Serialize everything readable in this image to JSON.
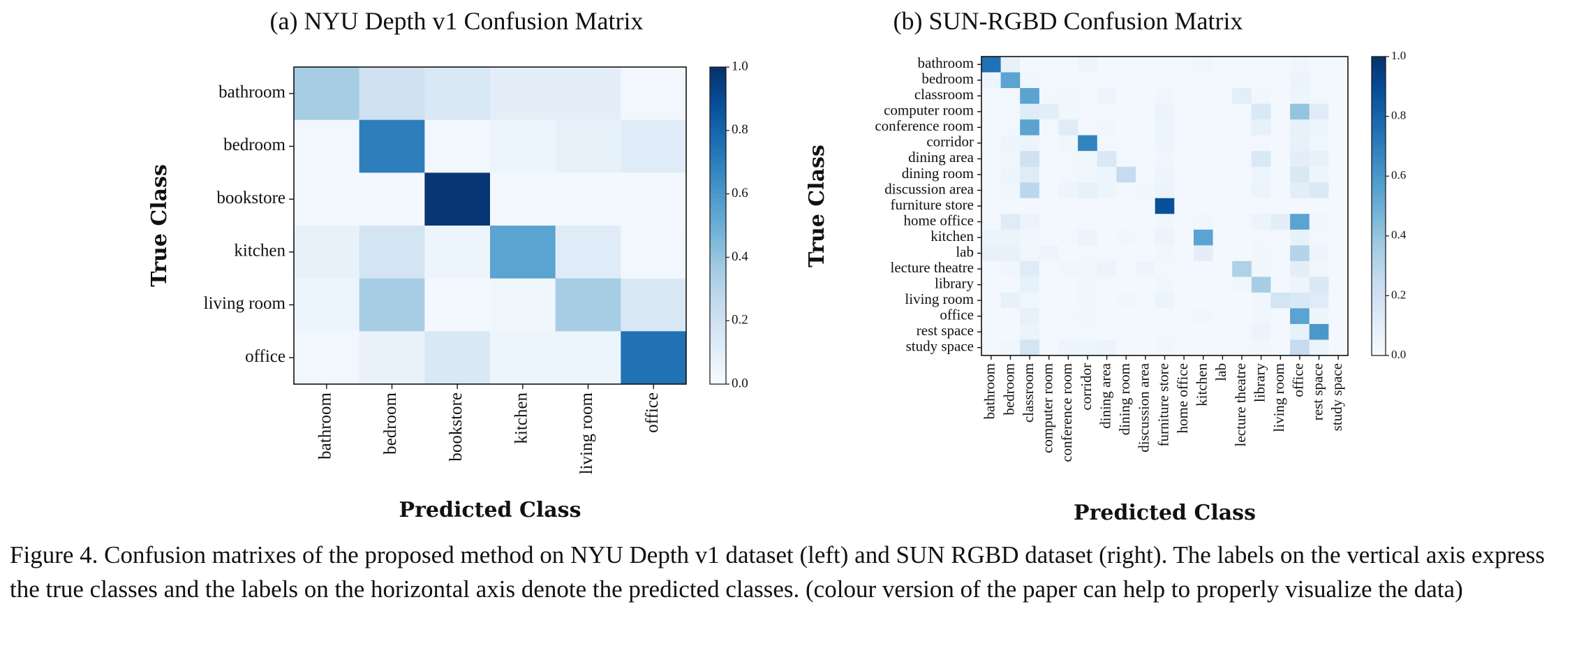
{
  "figure": {
    "caption": "Figure 4. Confusion matrixes of the proposed method on NYU Depth v1 dataset (left) and SUN RGBD dataset (right). The labels on the vertical axis express the true classes and the labels on the horizontal axis denote the predicted classes. (colour version of the paper can help to properly visualize the data)"
  },
  "colormap": {
    "name": "Blues",
    "stops": [
      "#f7fbff",
      "#deebf7",
      "#c6dbef",
      "#9ecae1",
      "#6baed6",
      "#4292c6",
      "#2171b5",
      "#08519c",
      "#08306b"
    ]
  },
  "chart_data": [
    {
      "type": "heatmap",
      "title": "(a) NYU Depth v1 Confusion Matrix",
      "xlabel": "Predicted Class",
      "ylabel": "True Class",
      "x": [
        "bathroom",
        "bedroom",
        "bookstore",
        "kitchen",
        "living room",
        "office"
      ],
      "y": [
        "bathroom",
        "bedroom",
        "bookstore",
        "kitchen",
        "living room",
        "office"
      ],
      "values": [
        [
          0.35,
          0.2,
          0.15,
          0.1,
          0.1,
          0.03
        ],
        [
          0.03,
          0.7,
          0.03,
          0.05,
          0.08,
          0.12
        ],
        [
          0.02,
          0.02,
          0.98,
          0.02,
          0.02,
          0.02
        ],
        [
          0.08,
          0.18,
          0.05,
          0.55,
          0.12,
          0.03
        ],
        [
          0.05,
          0.35,
          0.02,
          0.04,
          0.35,
          0.15
        ],
        [
          0.03,
          0.07,
          0.15,
          0.05,
          0.05,
          0.75
        ]
      ],
      "vmin": 0.0,
      "vmax": 1.0,
      "colorbar_ticks": [
        "0.0",
        "0.2",
        "0.4",
        "0.6",
        "0.8",
        "1.0"
      ],
      "grid": false
    },
    {
      "type": "heatmap",
      "title": "(b) SUN-RGBD Confusion Matrix",
      "xlabel": "Predicted Class",
      "ylabel": "True Class",
      "x": [
        "bathroom",
        "bedroom",
        "classroom",
        "computer room",
        "conference room",
        "corridor",
        "dining area",
        "dining room",
        "discussion area",
        "furniture store",
        "home office",
        "kitchen",
        "lab",
        "lecture theatre",
        "library",
        "living room",
        "office",
        "rest space",
        "study space"
      ],
      "y": [
        "bathroom",
        "bedroom",
        "classroom",
        "computer room",
        "conference room",
        "corridor",
        "dining area",
        "dining room",
        "discussion area",
        "furniture store",
        "home office",
        "kitchen",
        "lab",
        "lecture theatre",
        "library",
        "living room",
        "office",
        "rest space",
        "study space"
      ],
      "values": [
        [
          0.75,
          0.08,
          0.02,
          0.02,
          0.02,
          0.05,
          0.02,
          0.02,
          0.02,
          0.03,
          0.02,
          0.04,
          0.02,
          0.02,
          0.02,
          0.02,
          0.04,
          0.02,
          0.02
        ],
        [
          0.05,
          0.55,
          0.04,
          0.02,
          0.02,
          0.03,
          0.02,
          0.02,
          0.02,
          0.03,
          0.02,
          0.02,
          0.02,
          0.02,
          0.02,
          0.02,
          0.06,
          0.03,
          0.02
        ],
        [
          0.02,
          0.03,
          0.55,
          0.03,
          0.04,
          0.03,
          0.05,
          0.02,
          0.02,
          0.04,
          0.02,
          0.02,
          0.02,
          0.1,
          0.04,
          0.02,
          0.05,
          0.03,
          0.02
        ],
        [
          0.02,
          0.03,
          0.12,
          0.1,
          0.04,
          0.03,
          0.03,
          0.02,
          0.02,
          0.06,
          0.02,
          0.02,
          0.02,
          0.03,
          0.15,
          0.02,
          0.4,
          0.12,
          0.02
        ],
        [
          0.02,
          0.03,
          0.55,
          0.03,
          0.12,
          0.03,
          0.04,
          0.02,
          0.02,
          0.05,
          0.02,
          0.02,
          0.02,
          0.03,
          0.08,
          0.03,
          0.08,
          0.05,
          0.02
        ],
        [
          0.02,
          0.05,
          0.06,
          0.02,
          0.04,
          0.68,
          0.03,
          0.02,
          0.02,
          0.05,
          0.02,
          0.02,
          0.02,
          0.02,
          0.03,
          0.02,
          0.08,
          0.04,
          0.02
        ],
        [
          0.02,
          0.04,
          0.2,
          0.02,
          0.03,
          0.04,
          0.15,
          0.03,
          0.02,
          0.04,
          0.02,
          0.02,
          0.02,
          0.03,
          0.15,
          0.02,
          0.1,
          0.08,
          0.02
        ],
        [
          0.02,
          0.05,
          0.12,
          0.02,
          0.03,
          0.04,
          0.05,
          0.25,
          0.02,
          0.05,
          0.02,
          0.03,
          0.02,
          0.02,
          0.05,
          0.02,
          0.15,
          0.05,
          0.02
        ],
        [
          0.02,
          0.04,
          0.28,
          0.02,
          0.05,
          0.08,
          0.05,
          0.03,
          0.04,
          0.06,
          0.02,
          0.02,
          0.02,
          0.02,
          0.06,
          0.02,
          0.1,
          0.14,
          0.02
        ],
        [
          0.02,
          0.02,
          0.02,
          0.02,
          0.02,
          0.02,
          0.02,
          0.02,
          0.02,
          0.88,
          0.02,
          0.02,
          0.02,
          0.02,
          0.02,
          0.02,
          0.02,
          0.02,
          0.02
        ],
        [
          0.02,
          0.12,
          0.06,
          0.02,
          0.02,
          0.03,
          0.02,
          0.02,
          0.02,
          0.04,
          0.02,
          0.04,
          0.02,
          0.03,
          0.06,
          0.1,
          0.55,
          0.04,
          0.02
        ],
        [
          0.06,
          0.06,
          0.04,
          0.02,
          0.03,
          0.06,
          0.02,
          0.04,
          0.02,
          0.06,
          0.02,
          0.55,
          0.02,
          0.02,
          0.03,
          0.02,
          0.08,
          0.03,
          0.02
        ],
        [
          0.08,
          0.08,
          0.04,
          0.05,
          0.02,
          0.03,
          0.03,
          0.02,
          0.02,
          0.04,
          0.02,
          0.1,
          0.02,
          0.02,
          0.04,
          0.02,
          0.3,
          0.05,
          0.02
        ],
        [
          0.02,
          0.04,
          0.12,
          0.02,
          0.04,
          0.04,
          0.06,
          0.02,
          0.05,
          0.03,
          0.02,
          0.02,
          0.02,
          0.32,
          0.04,
          0.02,
          0.1,
          0.04,
          0.02
        ],
        [
          0.02,
          0.02,
          0.08,
          0.02,
          0.02,
          0.04,
          0.03,
          0.02,
          0.02,
          0.04,
          0.02,
          0.02,
          0.02,
          0.04,
          0.35,
          0.02,
          0.05,
          0.15,
          0.02
        ],
        [
          0.02,
          0.08,
          0.04,
          0.02,
          0.02,
          0.04,
          0.02,
          0.04,
          0.02,
          0.06,
          0.02,
          0.02,
          0.02,
          0.02,
          0.04,
          0.18,
          0.15,
          0.12,
          0.02
        ],
        [
          0.02,
          0.02,
          0.08,
          0.02,
          0.03,
          0.04,
          0.02,
          0.02,
          0.02,
          0.02,
          0.02,
          0.04,
          0.02,
          0.02,
          0.04,
          0.02,
          0.55,
          0.05,
          0.02
        ],
        [
          0.02,
          0.02,
          0.06,
          0.02,
          0.02,
          0.03,
          0.02,
          0.02,
          0.02,
          0.03,
          0.02,
          0.02,
          0.02,
          0.03,
          0.06,
          0.02,
          0.08,
          0.6,
          0.02
        ],
        [
          0.02,
          0.04,
          0.18,
          0.02,
          0.05,
          0.05,
          0.06,
          0.02,
          0.02,
          0.04,
          0.02,
          0.02,
          0.02,
          0.03,
          0.04,
          0.02,
          0.25,
          0.06,
          0.02
        ]
      ],
      "vmin": 0.0,
      "vmax": 1.0,
      "colorbar_ticks": [
        "0.0",
        "0.2",
        "0.4",
        "0.6",
        "0.8",
        "1.0"
      ],
      "grid": false
    }
  ]
}
